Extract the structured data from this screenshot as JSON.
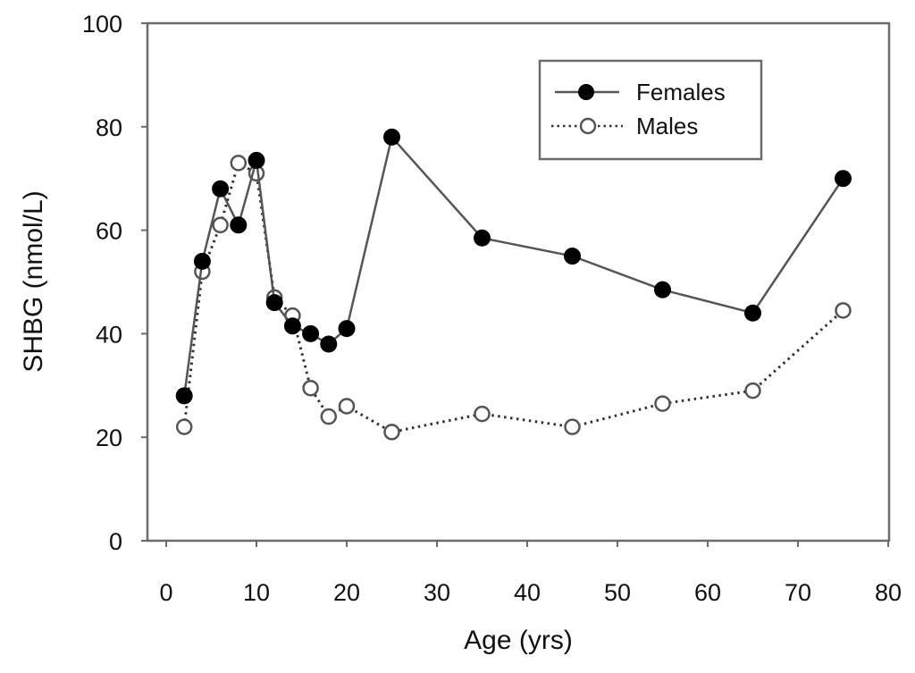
{
  "chart_data": {
    "type": "line",
    "title": "",
    "xlabel": "Age (yrs)",
    "ylabel": "SHBG (nmol/L)",
    "xlim": [
      0,
      80
    ],
    "ylim": [
      0,
      100
    ],
    "xticks": [
      0,
      10,
      20,
      30,
      40,
      50,
      60,
      70,
      80
    ],
    "yticks": [
      0,
      20,
      40,
      60,
      80,
      100
    ],
    "grid": false,
    "legend_position": "top-right",
    "series": [
      {
        "name": "Females",
        "style": "solid",
        "marker": "filled-circle",
        "color": "#000000",
        "line_color": "#555555",
        "x": [
          2,
          4,
          6,
          8,
          10,
          12,
          14,
          16,
          18,
          20,
          25,
          35,
          45,
          55,
          65,
          75
        ],
        "y": [
          28,
          54,
          68,
          61,
          73.5,
          46,
          41.5,
          40,
          38,
          41,
          78,
          58.5,
          55,
          48.5,
          44,
          70
        ]
      },
      {
        "name": "Males",
        "style": "dotted",
        "marker": "open-circle",
        "color": "#555555",
        "line_color": "#333333",
        "x": [
          2,
          4,
          6,
          8,
          10,
          12,
          14,
          16,
          18,
          20,
          25,
          35,
          45,
          55,
          65,
          75
        ],
        "y": [
          22,
          52,
          61,
          73,
          71,
          47,
          43.5,
          29.5,
          24,
          26,
          21,
          24.5,
          22,
          26.5,
          29,
          44.5
        ]
      }
    ]
  }
}
